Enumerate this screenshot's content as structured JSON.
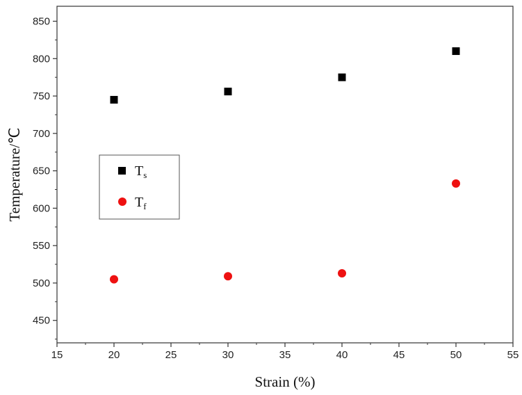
{
  "chart_data": {
    "type": "scatter",
    "title": "",
    "xlabel": "Strain (%)",
    "ylabel": "Temperature/℃",
    "xlim": [
      15,
      55
    ],
    "ylim": [
      420,
      870
    ],
    "xticks": [
      15,
      20,
      25,
      30,
      35,
      40,
      45,
      50,
      55
    ],
    "yticks": [
      450,
      500,
      550,
      600,
      650,
      700,
      750,
      800,
      850
    ],
    "grid": false,
    "legend_position": "left-middle",
    "series": [
      {
        "name_main": "T",
        "name_sub": "s",
        "marker": "square",
        "color": "#000000",
        "x": [
          20,
          30,
          40,
          50
        ],
        "y": [
          745,
          756,
          775,
          810
        ]
      },
      {
        "name_main": "T",
        "name_sub": "f",
        "marker": "circle",
        "color": "#ee1111",
        "x": [
          20,
          30,
          40,
          50
        ],
        "y": [
          505,
          509,
          513,
          633
        ]
      }
    ]
  }
}
